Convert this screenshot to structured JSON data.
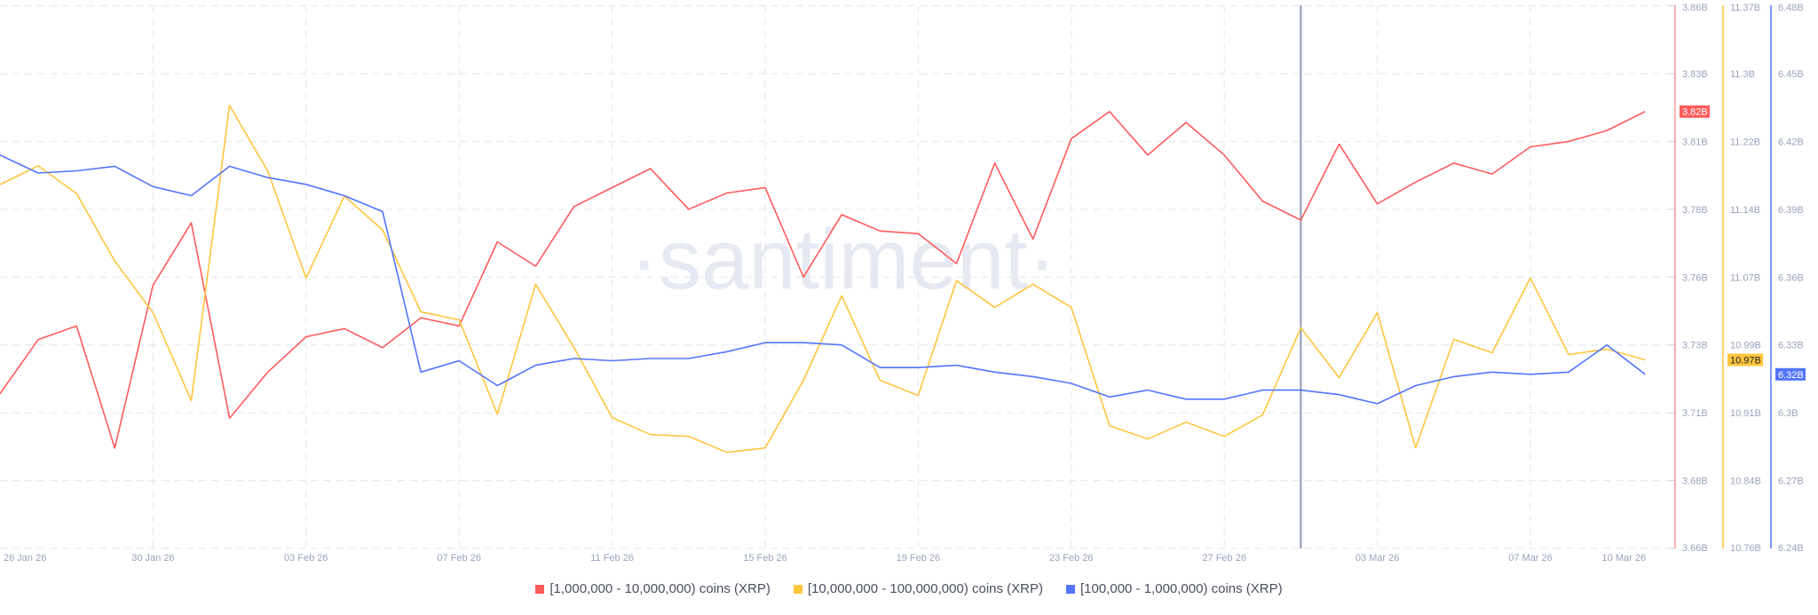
{
  "watermark": "·santiment·",
  "colors": {
    "red": "#ff5b5b",
    "yellow": "#ffc53d",
    "blue": "#5275ff",
    "grid": "#e3e6ef",
    "crosshair": "#8f97b8"
  },
  "chart_data": {
    "type": "line",
    "dates": [
      "26 Jan 26",
      "27 Jan 26",
      "28 Jan 26",
      "29 Jan 26",
      "30 Jan 26",
      "31 Jan 26",
      "01 Feb 26",
      "02 Feb 26",
      "03 Feb 26",
      "04 Feb 26",
      "05 Feb 26",
      "06 Feb 26",
      "07 Feb 26",
      "08 Feb 26",
      "09 Feb 26",
      "10 Feb 26",
      "11 Feb 26",
      "12 Feb 26",
      "13 Feb 26",
      "14 Feb 26",
      "15 Feb 26",
      "16 Feb 26",
      "17 Feb 26",
      "18 Feb 26",
      "19 Feb 26",
      "20 Feb 26",
      "21 Feb 26",
      "22 Feb 26",
      "23 Feb 26",
      "24 Feb 26",
      "25 Feb 26",
      "26 Feb 26",
      "27 Feb 26",
      "28 Feb 26",
      "01 Mar 26",
      "02 Mar 26",
      "03 Mar 26",
      "04 Mar 26",
      "05 Mar 26",
      "06 Mar 26",
      "07 Mar 26",
      "08 Mar 26",
      "09 Mar 26",
      "10 Mar 26"
    ],
    "x_tick_labels": [
      "26 Jan 26",
      "30 Jan 26",
      "03 Feb 26",
      "07 Feb 26",
      "11 Feb 26",
      "15 Feb 26",
      "19 Feb 26",
      "23 Feb 26",
      "27 Feb 26",
      "03 Mar 26",
      "07 Mar 26",
      "10 Mar 26"
    ],
    "crosshair_date": "01 Mar 26",
    "grid": true,
    "legend_position": "bottom",
    "series": [
      {
        "name": "[1,000,000 - 10,000,000) coins (XRP)",
        "color": "#ff5b5b",
        "axis": "right-1",
        "ylim": [
          3.66,
          3.86
        ],
        "ticks": [
          "3.86B",
          "3.83B",
          "3.81B",
          "3.78B",
          "3.76B",
          "3.73B",
          "3.71B",
          "3.68B",
          "3.66B"
        ],
        "last_label": "3.82B",
        "values": [
          3.717,
          3.737,
          3.742,
          3.697,
          3.757,
          3.78,
          3.708,
          3.725,
          3.738,
          3.741,
          3.734,
          3.745,
          3.742,
          3.773,
          3.764,
          3.786,
          3.793,
          3.8,
          3.785,
          3.791,
          3.793,
          3.76,
          3.783,
          3.777,
          3.776,
          3.765,
          3.802,
          3.774,
          3.811,
          3.821,
          3.805,
          3.817,
          3.805,
          3.788,
          3.781,
          3.809,
          3.787,
          3.795,
          3.802,
          3.798,
          3.808,
          3.81,
          3.814,
          3.821
        ]
      },
      {
        "name": "[10,000,000 - 100,000,000) coins (XRP)",
        "color": "#ffc53d",
        "axis": "right-2",
        "ylim": [
          10.76,
          11.37
        ],
        "ticks": [
          "11.37B",
          "11.3B",
          "11.22B",
          "11.14B",
          "11.07B",
          "10.99B",
          "10.91B",
          "10.84B",
          "10.76B"
        ],
        "last_label": "10.97B",
        "values": [
          11.169,
          11.19,
          11.159,
          11.083,
          11.025,
          10.926,
          11.258,
          11.184,
          11.064,
          11.156,
          11.118,
          11.026,
          11.017,
          10.911,
          11.057,
          10.986,
          10.907,
          10.888,
          10.886,
          10.868,
          10.873,
          10.949,
          11.044,
          10.949,
          10.932,
          11.061,
          11.031,
          11.057,
          11.031,
          10.898,
          10.883,
          10.902,
          10.886,
          10.91,
          11.008,
          10.952,
          11.025,
          10.873,
          10.995,
          10.98,
          11.064,
          10.978,
          10.984,
          10.972
        ]
      },
      {
        "name": "[100,000  - 1,000,000) coins (XRP)",
        "color": "#5275ff",
        "axis": "right-3",
        "ylim": [
          6.24,
          6.48
        ],
        "ticks": [
          "6.48B",
          "6.45B",
          "6.42B",
          "6.39B",
          "6.36B",
          "6.33B",
          "6.3B",
          "6.27B",
          "6.24B"
        ],
        "last_label": "6.32B",
        "values": [
          6.414,
          6.406,
          6.407,
          6.409,
          6.4,
          6.396,
          6.409,
          6.404,
          6.401,
          6.396,
          6.389,
          6.318,
          6.323,
          6.312,
          6.321,
          6.324,
          6.323,
          6.324,
          6.324,
          6.327,
          6.331,
          6.331,
          6.33,
          6.32,
          6.32,
          6.321,
          6.318,
          6.316,
          6.313,
          6.307,
          6.31,
          6.306,
          6.306,
          6.31,
          6.31,
          6.308,
          6.304,
          6.312,
          6.316,
          6.318,
          6.317,
          6.318,
          6.33,
          6.317
        ]
      }
    ]
  }
}
